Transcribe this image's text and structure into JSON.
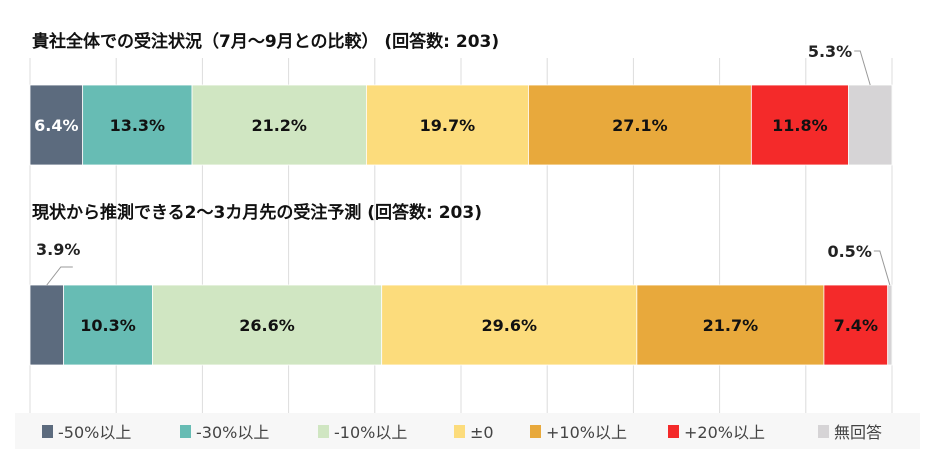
{
  "chart_data": {
    "type": "bar",
    "orientation": "horizontal-stacked-100",
    "legend_position": "bottom",
    "grid": true,
    "categories": [
      "-50%以上",
      "-30%以上",
      "-10%以上",
      "±0",
      "+10%以上",
      "+20%以上",
      "無回答"
    ],
    "colors": [
      "#5c6b7e",
      "#67bcb4",
      "#d0e6c2",
      "#fcdc7c",
      "#e8a93c",
      "#f42a2a",
      "#d6d4d6"
    ],
    "label_colors": [
      "#ffffff",
      "#111111",
      "#111111",
      "#111111",
      "#111111",
      "#111111",
      "#111111"
    ],
    "series": [
      {
        "name": "貴社全体での受注状況（7月～9月との比較） (回答数: 203)",
        "values": [
          6.4,
          13.3,
          21.2,
          19.7,
          27.1,
          11.8,
          5.3
        ],
        "labels": [
          "6.4%",
          "13.3%",
          "21.2%",
          "19.7%",
          "27.1%",
          "11.8%",
          "5.3%"
        ],
        "outside_labels": [
          6
        ]
      },
      {
        "name": "現状から推測できる2～3カ月先の受注予測 (回答数: 203)",
        "values": [
          3.9,
          10.3,
          26.6,
          29.6,
          21.7,
          7.4,
          0.5
        ],
        "labels": [
          "3.9%",
          "10.3%",
          "26.6%",
          "29.6%",
          "21.7%",
          "7.4%",
          "0.5%"
        ],
        "outside_labels": [
          0,
          6
        ]
      }
    ],
    "xlim": [
      0,
      100
    ]
  }
}
